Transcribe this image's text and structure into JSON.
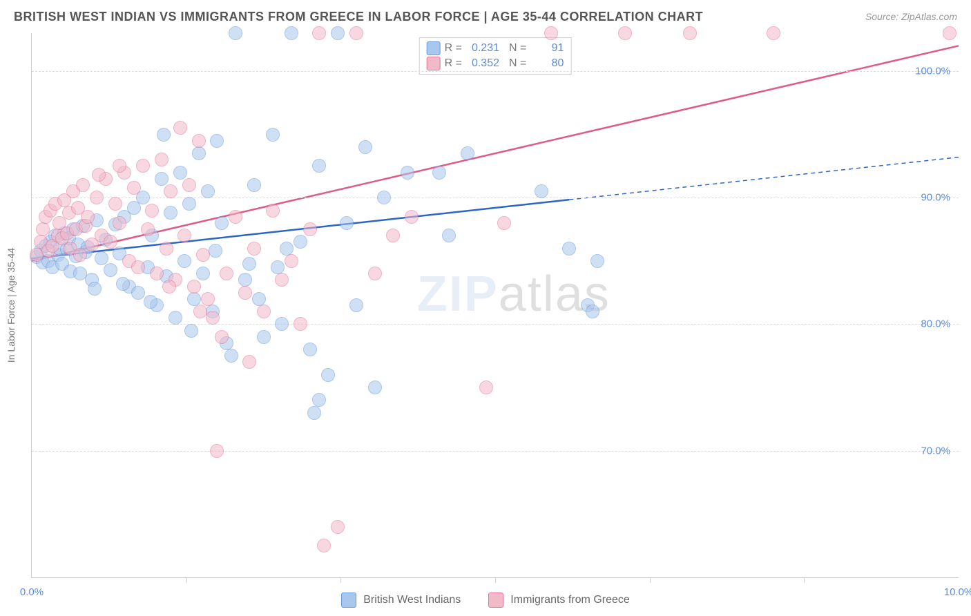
{
  "header": {
    "title": "BRITISH WEST INDIAN VS IMMIGRANTS FROM GREECE IN LABOR FORCE | AGE 35-44 CORRELATION CHART",
    "source_prefix": "Source: ",
    "source": "ZipAtlas.com"
  },
  "watermark": {
    "left": "ZIP",
    "right": "atlas"
  },
  "chart": {
    "type": "scatter",
    "background_color": "#ffffff",
    "grid_color": "#dddddd",
    "axis_color": "#cccccc",
    "tick_label_color": "#5b8cd6",
    "axis_label_color": "#777777",
    "yaxis_label": "In Labor Force | Age 35-44",
    "xlim": [
      0.0,
      10.0
    ],
    "ylim": [
      60.0,
      103.0
    ],
    "yticks": [
      70.0,
      80.0,
      90.0,
      100.0
    ],
    "ytick_labels": [
      "70.0%",
      "80.0%",
      "90.0%",
      "100.0%"
    ],
    "xticks": [
      0.0,
      10.0
    ],
    "xtick_labels": [
      "0.0%",
      "10.0%"
    ],
    "xtick_minor": [
      1.67,
      3.33,
      5.0,
      6.67,
      8.33
    ],
    "marker_radius": 10,
    "marker_opacity": 0.55,
    "stats_box": {
      "r_label": "R =",
      "n_label": "N =",
      "rows": [
        {
          "swatch_fill": "#a9c7ec",
          "swatch_stroke": "#6699dd",
          "r": "0.231",
          "n": "91"
        },
        {
          "swatch_fill": "#f2b9c9",
          "swatch_stroke": "#e67399",
          "r": "0.352",
          "n": "80"
        }
      ]
    },
    "series": [
      {
        "name": "British West Indians",
        "fill_color": "#a9c7ec",
        "stroke_color": "#6699dd",
        "trend": {
          "color": "#2b66c4",
          "width": 2.5,
          "solid_from_x": 0.0,
          "solid_to_x": 5.8,
          "y_at_x0": 85.2,
          "y_at_x10": 93.2
        },
        "points": [
          [
            0.05,
            85.3
          ],
          [
            0.1,
            85.8
          ],
          [
            0.12,
            84.9
          ],
          [
            0.15,
            86.2
          ],
          [
            0.18,
            85.0
          ],
          [
            0.2,
            86.5
          ],
          [
            0.22,
            84.5
          ],
          [
            0.25,
            87.0
          ],
          [
            0.28,
            85.5
          ],
          [
            0.3,
            86.0
          ],
          [
            0.33,
            84.8
          ],
          [
            0.35,
            87.2
          ],
          [
            0.38,
            85.9
          ],
          [
            0.4,
            86.8
          ],
          [
            0.42,
            84.2
          ],
          [
            0.45,
            87.5
          ],
          [
            0.48,
            85.4
          ],
          [
            0.5,
            86.3
          ],
          [
            0.52,
            84.0
          ],
          [
            0.55,
            87.8
          ],
          [
            0.58,
            85.7
          ],
          [
            0.6,
            86.1
          ],
          [
            0.65,
            83.5
          ],
          [
            0.7,
            88.2
          ],
          [
            0.75,
            85.2
          ],
          [
            0.8,
            86.7
          ],
          [
            0.85,
            84.3
          ],
          [
            0.9,
            87.9
          ],
          [
            0.95,
            85.6
          ],
          [
            1.0,
            88.5
          ],
          [
            1.05,
            83.0
          ],
          [
            1.1,
            89.2
          ],
          [
            1.15,
            82.5
          ],
          [
            1.2,
            90.0
          ],
          [
            1.25,
            84.5
          ],
          [
            1.3,
            87.0
          ],
          [
            1.35,
            81.5
          ],
          [
            1.4,
            91.5
          ],
          [
            1.45,
            83.8
          ],
          [
            1.5,
            88.8
          ],
          [
            1.55,
            80.5
          ],
          [
            1.6,
            92.0
          ],
          [
            1.65,
            85.0
          ],
          [
            1.7,
            89.5
          ],
          [
            1.75,
            82.0
          ],
          [
            1.8,
            93.5
          ],
          [
            1.85,
            84.0
          ],
          [
            1.9,
            90.5
          ],
          [
            1.95,
            81.0
          ],
          [
            2.0,
            94.5
          ],
          [
            2.1,
            78.5
          ],
          [
            2.2,
            103.0
          ],
          [
            2.3,
            83.5
          ],
          [
            2.4,
            91.0
          ],
          [
            2.5,
            79.0
          ],
          [
            2.6,
            95.0
          ],
          [
            2.7,
            80.0
          ],
          [
            2.8,
            103.0
          ],
          [
            2.9,
            86.5
          ],
          [
            3.0,
            78.0
          ],
          [
            3.1,
            92.5
          ],
          [
            3.2,
            76.0
          ],
          [
            3.3,
            103.0
          ],
          [
            3.4,
            88.0
          ],
          [
            3.5,
            81.5
          ],
          [
            3.6,
            94.0
          ],
          [
            3.7,
            75.0
          ],
          [
            3.8,
            90.0
          ],
          [
            3.1,
            74.0
          ],
          [
            3.05,
            73.0
          ],
          [
            2.75,
            86.0
          ],
          [
            2.65,
            84.5
          ],
          [
            2.45,
            82.0
          ],
          [
            2.15,
            77.5
          ],
          [
            1.98,
            85.8
          ],
          [
            4.05,
            92.0
          ],
          [
            4.4,
            92.0
          ],
          [
            4.5,
            87.0
          ],
          [
            4.7,
            93.5
          ],
          [
            5.5,
            90.5
          ],
          [
            5.8,
            86.0
          ],
          [
            6.0,
            81.5
          ],
          [
            6.05,
            81.0
          ],
          [
            6.1,
            85.0
          ],
          [
            1.42,
            95.0
          ],
          [
            0.98,
            83.2
          ],
          [
            0.68,
            82.8
          ],
          [
            1.28,
            81.8
          ],
          [
            1.72,
            79.5
          ],
          [
            2.05,
            88.0
          ],
          [
            2.35,
            84.8
          ]
        ]
      },
      {
        "name": "Immigrants from Greece",
        "fill_color": "#f2b9c9",
        "stroke_color": "#e67399",
        "trend": {
          "color": "#e05a88",
          "width": 2.5,
          "solid_from_x": 0.0,
          "solid_to_x": 10.0,
          "y_at_x0": 85.0,
          "y_at_x10": 102.0
        },
        "points": [
          [
            0.05,
            85.5
          ],
          [
            0.1,
            86.5
          ],
          [
            0.12,
            87.5
          ],
          [
            0.15,
            88.5
          ],
          [
            0.18,
            85.8
          ],
          [
            0.2,
            89.0
          ],
          [
            0.22,
            86.2
          ],
          [
            0.25,
            89.5
          ],
          [
            0.28,
            87.0
          ],
          [
            0.3,
            88.0
          ],
          [
            0.33,
            86.8
          ],
          [
            0.35,
            89.8
          ],
          [
            0.38,
            87.2
          ],
          [
            0.4,
            88.8
          ],
          [
            0.42,
            86.0
          ],
          [
            0.45,
            90.5
          ],
          [
            0.48,
            87.5
          ],
          [
            0.5,
            89.2
          ],
          [
            0.52,
            85.5
          ],
          [
            0.55,
            91.0
          ],
          [
            0.58,
            87.8
          ],
          [
            0.6,
            88.5
          ],
          [
            0.65,
            86.3
          ],
          [
            0.7,
            90.0
          ],
          [
            0.75,
            87.0
          ],
          [
            0.8,
            91.5
          ],
          [
            0.85,
            86.5
          ],
          [
            0.9,
            89.5
          ],
          [
            0.95,
            88.0
          ],
          [
            1.0,
            92.0
          ],
          [
            1.05,
            85.0
          ],
          [
            1.1,
            90.8
          ],
          [
            1.15,
            84.5
          ],
          [
            1.2,
            92.5
          ],
          [
            1.25,
            87.5
          ],
          [
            1.3,
            89.0
          ],
          [
            1.35,
            84.0
          ],
          [
            1.4,
            93.0
          ],
          [
            1.45,
            86.0
          ],
          [
            1.5,
            90.5
          ],
          [
            1.55,
            83.5
          ],
          [
            1.6,
            95.5
          ],
          [
            1.65,
            87.0
          ],
          [
            1.7,
            91.0
          ],
          [
            1.75,
            83.0
          ],
          [
            1.8,
            94.5
          ],
          [
            1.85,
            85.5
          ],
          [
            1.9,
            82.0
          ],
          [
            1.95,
            80.5
          ],
          [
            2.0,
            70.0
          ],
          [
            2.1,
            84.0
          ],
          [
            2.2,
            88.5
          ],
          [
            2.3,
            82.5
          ],
          [
            2.4,
            86.0
          ],
          [
            2.5,
            81.0
          ],
          [
            2.6,
            89.0
          ],
          [
            2.7,
            83.5
          ],
          [
            2.8,
            85.0
          ],
          [
            2.9,
            80.0
          ],
          [
            3.0,
            87.5
          ],
          [
            3.1,
            103.0
          ],
          [
            3.3,
            64.0
          ],
          [
            3.15,
            62.5
          ],
          [
            3.5,
            103.0
          ],
          [
            3.7,
            84.0
          ],
          [
            3.9,
            87.0
          ],
          [
            4.1,
            88.5
          ],
          [
            4.9,
            75.0
          ],
          [
            5.1,
            88.0
          ],
          [
            5.6,
            103.0
          ],
          [
            6.4,
            103.0
          ],
          [
            7.1,
            103.0
          ],
          [
            8.0,
            103.0
          ],
          [
            9.9,
            103.0
          ],
          [
            1.48,
            83.0
          ],
          [
            1.82,
            81.0
          ],
          [
            2.05,
            79.0
          ],
          [
            2.35,
            77.0
          ],
          [
            0.95,
            92.5
          ],
          [
            0.72,
            91.8
          ]
        ]
      }
    ],
    "bottom_legend": [
      {
        "label": "British West Indians",
        "fill": "#a9c7ec",
        "stroke": "#6699dd"
      },
      {
        "label": "Immigrants from Greece",
        "fill": "#f2b9c9",
        "stroke": "#e67399"
      }
    ]
  }
}
